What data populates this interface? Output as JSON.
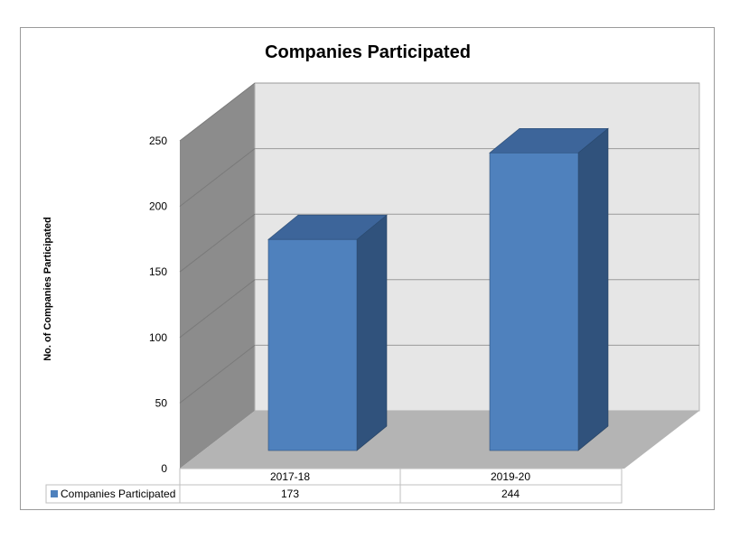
{
  "chart_data": {
    "type": "bar",
    "title": "Companies Participated",
    "xlabel": "",
    "ylabel": "No. of Companies Participated",
    "categories": [
      "2017-18",
      "2019-20"
    ],
    "series": [
      {
        "name": "Companies Participated",
        "values": [
          173,
          244
        ],
        "color": "#4f81bd"
      }
    ],
    "ylim": [
      0,
      250
    ],
    "yticks": [
      "0",
      "50",
      "100",
      "150",
      "200",
      "250"
    ],
    "grid": true,
    "legend": "data table, bottom-left",
    "data_table": {
      "legend_label": "Companies Participated",
      "row_values": [
        "173",
        "244"
      ]
    },
    "colors": {
      "bar_front": "#4f81bd",
      "bar_side": "#30527c",
      "bar_top": "#3d659a",
      "back_wall": "#e6e6e6",
      "side_wall": "#8c8c8c",
      "floor": "#b4b4b4"
    }
  }
}
